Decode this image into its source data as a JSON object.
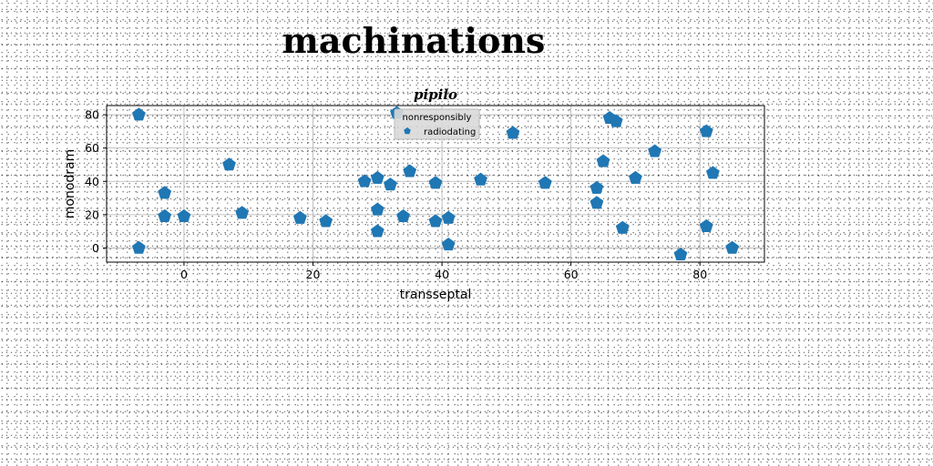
{
  "figure": {
    "suptitle": "machinations"
  },
  "chart_data": {
    "type": "scatter",
    "title": "pipilo",
    "xlabel": "transseptal",
    "ylabel": "monodram",
    "xlim": [
      -12,
      90
    ],
    "ylim": [
      -8.5,
      85.5
    ],
    "xticks": [
      0,
      20,
      40,
      60,
      80
    ],
    "yticks": [
      0,
      20,
      40,
      60,
      80
    ],
    "grid": true,
    "legend": {
      "title": "nonresponsibly",
      "placement": "upper-center"
    },
    "marker": "pentagon",
    "color": "#1f77b4",
    "series": [
      {
        "name": "radiodating",
        "points": [
          [
            -7,
            80
          ],
          [
            -7,
            0
          ],
          [
            -3,
            33
          ],
          [
            -3,
            19
          ],
          [
            0,
            19
          ],
          [
            7,
            50
          ],
          [
            9,
            21
          ],
          [
            18,
            18
          ],
          [
            22,
            16
          ],
          [
            28,
            40
          ],
          [
            30,
            42
          ],
          [
            30,
            23
          ],
          [
            30,
            10
          ],
          [
            32,
            38
          ],
          [
            33,
            81
          ],
          [
            34,
            19
          ],
          [
            35,
            46
          ],
          [
            39,
            39
          ],
          [
            39,
            16
          ],
          [
            41,
            18
          ],
          [
            41,
            2
          ],
          [
            46,
            41
          ],
          [
            51,
            69
          ],
          [
            56,
            39
          ],
          [
            64,
            36
          ],
          [
            64,
            27
          ],
          [
            65,
            52
          ],
          [
            66,
            78
          ],
          [
            67,
            76
          ],
          [
            68,
            12
          ],
          [
            70,
            42
          ],
          [
            73,
            58
          ],
          [
            77,
            -4
          ],
          [
            81,
            70
          ],
          [
            81,
            13
          ],
          [
            82,
            45
          ],
          [
            85,
            0
          ]
        ]
      }
    ]
  }
}
